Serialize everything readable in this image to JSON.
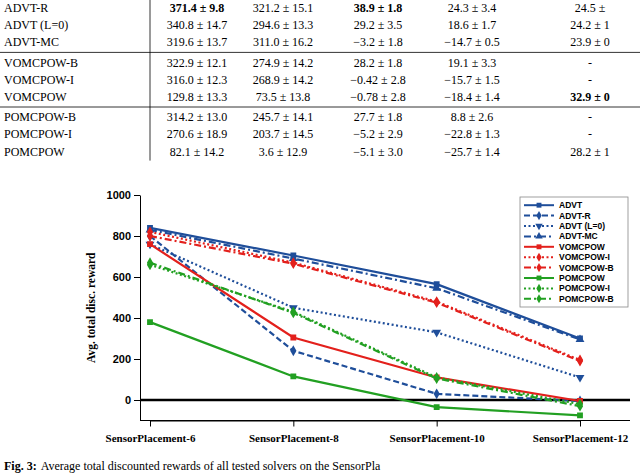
{
  "table": {
    "rows": [
      [
        "ADVT-R",
        "371.4 ± 9.8",
        "321.2 ± 15.1",
        "38.9 ± 1.8",
        "24.3 ± 3.4",
        "24.5 ±"
      ],
      [
        "ADVT (L=0)",
        "340.8 ± 14.7",
        "294.6 ± 13.3",
        "29.2 ± 3.5",
        "18.6 ± 1.7",
        "24.2 ± 1"
      ],
      [
        "ADVT-MC",
        "319.6 ± 13.7",
        "311.0 ± 16.2",
        "−3.2 ± 1.8",
        "−14.7 ± 0.5",
        "23.9 ± 0"
      ],
      [
        "VOMCPOW-B",
        "322.9 ± 12.1",
        "274.9 ± 14.2",
        "28.2 ± 1.8",
        "19.1 ± 3.3",
        "-"
      ],
      [
        "VOMCPOW-I",
        "316.0 ± 12.3",
        "268.9 ± 14.2",
        "−0.42 ± 2.8",
        "−15.7 ± 1.5",
        "-"
      ],
      [
        "VOMCPOW",
        "129.8 ± 13.3",
        "73.5 ± 13.8",
        "−0.78 ± 2.8",
        "−18.4 ± 1.4",
        "32.9 ± 0"
      ],
      [
        "POMCPOW-B",
        "314.2 ± 13.0",
        "245.7 ± 14.1",
        "27.7 ± 1.8",
        "8.8 ± 2.6",
        "-"
      ],
      [
        "POMCPOW-I",
        "270.6 ± 18.9",
        "203.7 ± 14.5",
        "−5.2 ± 2.9",
        "−22.8 ± 1.3",
        "-"
      ],
      [
        "POMCPOW",
        "82.1 ± 14.2",
        "3.6 ± 12.9",
        "−5.1 ± 3.0",
        "−25.7 ± 1.4",
        "28.2 ± 1"
      ]
    ],
    "bold": [
      [
        0,
        1
      ],
      [
        0,
        3
      ],
      [
        5,
        5
      ]
    ],
    "separators": [
      3,
      6
    ]
  },
  "chart_data": {
    "type": "line",
    "y_label": "Avg. total disc. reward",
    "categories": [
      "SensorPlacement-6",
      "SensorPlacement-8",
      "SensorPlacement-10",
      "SensorPlacement-12"
    ],
    "ylim": [
      -100,
      1000
    ],
    "yticks": [
      0,
      200,
      400,
      600,
      800,
      1000
    ],
    "hline": 0,
    "grid": false,
    "legend": "upper right",
    "series": [
      {
        "name": "ADVT",
        "color": "#1f4e9a",
        "marker": "square",
        "line_style": "solid",
        "values": [
          840,
          705,
          565,
          300
        ]
      },
      {
        "name": "ADVT-R",
        "color": "#1f4e9a",
        "marker": "diamond",
        "line_style": "dashed",
        "values": [
          800,
          240,
          30,
          -5
        ]
      },
      {
        "name": "ADVT (L=0)",
        "color": "#1f4e9a",
        "marker": "triangle-down",
        "line_style": "dotted",
        "values": [
          760,
          450,
          330,
          110
        ]
      },
      {
        "name": "ADVT-MC",
        "color": "#1f4e9a",
        "marker": "triangle-up",
        "line_style": "dashdot",
        "values": [
          830,
          690,
          545,
          295
        ]
      },
      {
        "name": "VOMCPOW",
        "color": "#e3201c",
        "marker": "square",
        "line_style": "solid",
        "values": [
          760,
          305,
          110,
          -5
        ]
      },
      {
        "name": "VOMCPOW-I",
        "color": "#e3201c",
        "marker": "diamond",
        "line_style": "dotted",
        "values": [
          820,
          670,
          480,
          195
        ]
      },
      {
        "name": "VOMCPOW-B",
        "color": "#e3201c",
        "marker": "diamond",
        "line_style": "dashdot",
        "values": [
          800,
          665,
          475,
          190
        ]
      },
      {
        "name": "POMCPOW",
        "color": "#22a022",
        "marker": "square",
        "line_style": "solid",
        "values": [
          380,
          115,
          -35,
          -75
        ]
      },
      {
        "name": "POMCPOW-I",
        "color": "#22a022",
        "marker": "diamond",
        "line_style": "dotted",
        "values": [
          660,
          430,
          110,
          -20
        ]
      },
      {
        "name": "POMCPOW-B",
        "color": "#22a022",
        "marker": "diamond",
        "line_style": "dashdot",
        "values": [
          670,
          425,
          105,
          -30
        ]
      }
    ]
  },
  "caption": {
    "label": "Fig. 3:",
    "text": "Average total discounted rewards of all tested solvers on the SensorPla"
  }
}
